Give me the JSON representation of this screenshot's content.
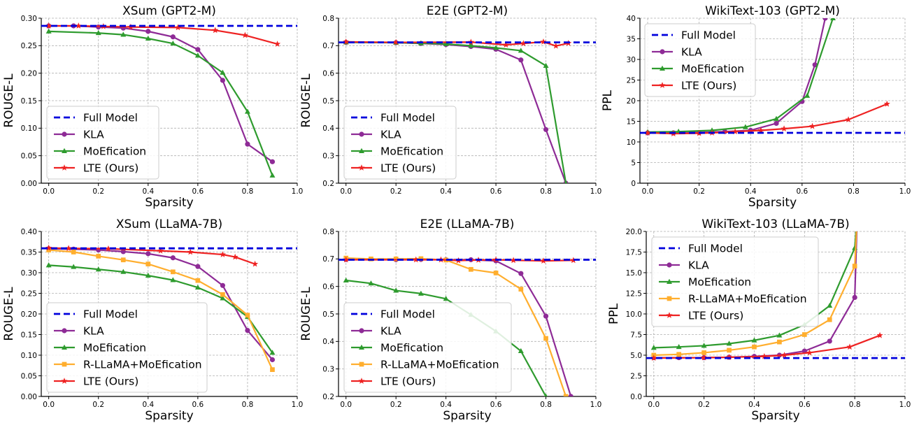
{
  "chart_data": [
    {
      "type": "line",
      "title": "XSum (GPT2-M)",
      "xlabel": "Sparsity",
      "ylabel": "ROUGE-L",
      "xlim": [
        -0.03,
        1.0
      ],
      "ylim": [
        0.0,
        0.3
      ],
      "xticks": [
        "0.0",
        "0.2",
        "0.4",
        "0.6",
        "0.8",
        "1.0"
      ],
      "yticks": [
        "0.00",
        "0.05",
        "0.10",
        "0.15",
        "0.20",
        "0.25",
        "0.30"
      ],
      "grid": true,
      "legend_position": "lower-left",
      "baseline": {
        "name": "Full Model",
        "value": 0.286,
        "color": "#0000dd"
      },
      "series": [
        {
          "name": "KLA",
          "color": "#8e2b96",
          "marker": "circle",
          "x": [
            0.0,
            0.1,
            0.2,
            0.3,
            0.4,
            0.5,
            0.6,
            0.7,
            0.8,
            0.9
          ],
          "y": [
            0.286,
            0.286,
            0.284,
            0.282,
            0.276,
            0.266,
            0.243,
            0.187,
            0.071,
            0.039
          ]
        },
        {
          "name": "MoEfication",
          "color": "#2e9b2e",
          "marker": "triangle",
          "x": [
            0.0,
            0.2,
            0.3,
            0.4,
            0.5,
            0.6,
            0.7,
            0.8,
            0.9
          ],
          "y": [
            0.276,
            0.273,
            0.27,
            0.263,
            0.254,
            0.232,
            0.201,
            0.13,
            0.014
          ]
        },
        {
          "name": "LTE (Ours)",
          "color": "#ee2222",
          "marker": "star",
          "x": [
            0.0,
            0.12,
            0.22,
            0.33,
            0.52,
            0.67,
            0.79,
            0.92
          ],
          "y": [
            0.286,
            0.286,
            0.285,
            0.284,
            0.283,
            0.278,
            0.269,
            0.253
          ]
        }
      ]
    },
    {
      "type": "line",
      "title": "E2E (GPT2-M)",
      "xlabel": "",
      "ylabel": "ROUGE-L",
      "xlim": [
        -0.03,
        1.0
      ],
      "ylim": [
        0.2,
        0.8
      ],
      "xticks": [
        "0.0",
        "0.2",
        "0.4",
        "0.6",
        "0.8",
        "1.0"
      ],
      "yticks": [
        "0.2",
        "0.3",
        "0.4",
        "0.5",
        "0.6",
        "0.7",
        "0.8"
      ],
      "grid": true,
      "legend_position": "lower-left",
      "baseline": {
        "name": "Full Model",
        "value": 0.712,
        "color": "#0000dd"
      },
      "series": [
        {
          "name": "KLA",
          "color": "#8e2b96",
          "marker": "circle",
          "x": [
            0.0,
            0.2,
            0.3,
            0.4,
            0.5,
            0.6,
            0.7,
            0.8,
            0.88
          ],
          "y": [
            0.712,
            0.711,
            0.708,
            0.704,
            0.697,
            0.687,
            0.648,
            0.395,
            0.2
          ]
        },
        {
          "name": "MoEfication",
          "color": "#2e9b2e",
          "marker": "triangle",
          "x": [
            0.0,
            0.2,
            0.3,
            0.4,
            0.5,
            0.6,
            0.7,
            0.8,
            0.88
          ],
          "y": [
            0.712,
            0.711,
            0.709,
            0.706,
            0.7,
            0.692,
            0.682,
            0.627,
            0.2
          ]
        },
        {
          "name": "LTE (Ours)",
          "color": "#ee2222",
          "marker": "star",
          "x": [
            0.0,
            0.2,
            0.5,
            0.64,
            0.71,
            0.79,
            0.84,
            0.89
          ],
          "y": [
            0.714,
            0.712,
            0.713,
            0.703,
            0.708,
            0.714,
            0.699,
            0.709
          ]
        }
      ]
    },
    {
      "type": "line",
      "title": "WikiText-103 (GPT2-M)",
      "xlabel": "Sparsity",
      "ylabel": "PPL",
      "xlim": [
        -0.03,
        1.0
      ],
      "ylim": [
        0,
        40
      ],
      "xticks": [
        "0.0",
        "0.2",
        "0.4",
        "0.6",
        "0.8",
        "1.0"
      ],
      "yticks": [
        "0",
        "5",
        "10",
        "15",
        "20",
        "25",
        "30",
        "35",
        "40"
      ],
      "grid": true,
      "legend_position": "top-left",
      "baseline": {
        "name": "Full Model",
        "value": 12.2,
        "color": "#0000dd"
      },
      "series": [
        {
          "name": "KLA",
          "color": "#8e2b96",
          "marker": "circle",
          "x": [
            0.0,
            0.1,
            0.2,
            0.3,
            0.4,
            0.5,
            0.6,
            0.65,
            0.69,
            0.72
          ],
          "y": [
            12.2,
            12.2,
            12.3,
            12.5,
            12.8,
            14.5,
            19.8,
            28.7,
            40,
            45
          ]
        },
        {
          "name": "MoEfication",
          "color": "#2e9b2e",
          "marker": "triangle",
          "x": [
            0.0,
            0.12,
            0.25,
            0.38,
            0.5,
            0.62,
            0.72,
            0.76
          ],
          "y": [
            12.4,
            12.5,
            12.8,
            13.6,
            15.6,
            21.2,
            40,
            45
          ]
        },
        {
          "name": "LTE (Ours)",
          "color": "#ee2222",
          "marker": "star",
          "x": [
            0.0,
            0.1,
            0.2,
            0.25,
            0.34,
            0.44,
            0.53,
            0.64,
            0.78,
            0.93
          ],
          "y": [
            12.2,
            12.0,
            12.1,
            12.2,
            12.5,
            12.8,
            13.2,
            13.8,
            15.4,
            19.2
          ]
        }
      ]
    },
    {
      "type": "line",
      "title": "XSum (LLaMA-7B)",
      "xlabel": "Sparsity",
      "ylabel": "ROUGE-L",
      "xlim": [
        -0.03,
        1.0
      ],
      "ylim": [
        0.0,
        0.4
      ],
      "xticks": [
        "0.0",
        "0.2",
        "0.4",
        "0.6",
        "0.8",
        "1.0"
      ],
      "yticks": [
        "0.00",
        "0.05",
        "0.10",
        "0.15",
        "0.20",
        "0.25",
        "0.30",
        "0.35",
        "0.40"
      ],
      "grid": true,
      "legend_position": "lower-left",
      "baseline": {
        "name": "Full Model",
        "value": 0.359,
        "color": "#0000dd"
      },
      "series": [
        {
          "name": "KLA",
          "color": "#8e2b96",
          "marker": "circle",
          "x": [
            0.0,
            0.1,
            0.2,
            0.3,
            0.4,
            0.5,
            0.6,
            0.7,
            0.8,
            0.9
          ],
          "y": [
            0.358,
            0.357,
            0.355,
            0.351,
            0.346,
            0.336,
            0.315,
            0.269,
            0.16,
            0.089
          ]
        },
        {
          "name": "MoEfication",
          "color": "#2e9b2e",
          "marker": "triangle",
          "x": [
            0.0,
            0.1,
            0.2,
            0.3,
            0.4,
            0.5,
            0.6,
            0.7,
            0.8,
            0.9
          ],
          "y": [
            0.318,
            0.314,
            0.308,
            0.302,
            0.293,
            0.282,
            0.264,
            0.238,
            0.193,
            0.106
          ]
        },
        {
          "name": "R-LLaMA+MoEfication",
          "color": "#ffae2e",
          "marker": "square",
          "x": [
            0.0,
            0.1,
            0.2,
            0.3,
            0.4,
            0.5,
            0.6,
            0.7,
            0.8,
            0.9
          ],
          "y": [
            0.355,
            0.35,
            0.34,
            0.331,
            0.321,
            0.302,
            0.281,
            0.247,
            0.197,
            0.065
          ]
        },
        {
          "name": "LTE (Ours)",
          "color": "#ee2222",
          "marker": "star",
          "x": [
            0.0,
            0.08,
            0.24,
            0.45,
            0.57,
            0.7,
            0.75,
            0.83
          ],
          "y": [
            0.36,
            0.359,
            0.358,
            0.353,
            0.35,
            0.344,
            0.338,
            0.321
          ]
        }
      ]
    },
    {
      "type": "line",
      "title": "E2E (LLaMA-7B)",
      "xlabel": "Sparsity",
      "ylabel": "ROUGE-L",
      "xlim": [
        -0.03,
        1.0
      ],
      "ylim": [
        0.2,
        0.8
      ],
      "xticks": [
        "0.0",
        "0.2",
        "0.4",
        "0.6",
        "0.8",
        "1.0"
      ],
      "yticks": [
        "0.2",
        "0.3",
        "0.4",
        "0.5",
        "0.6",
        "0.7",
        "0.8"
      ],
      "grid": true,
      "legend_position": "lower-left",
      "baseline": {
        "name": "Full Model",
        "value": 0.697,
        "color": "#0000dd"
      },
      "series": [
        {
          "name": "KLA",
          "color": "#8e2b96",
          "marker": "circle",
          "x": [
            0.0,
            0.2,
            0.3,
            0.4,
            0.5,
            0.6,
            0.7,
            0.8,
            0.9
          ],
          "y": [
            0.698,
            0.697,
            0.698,
            0.697,
            0.697,
            0.693,
            0.647,
            0.492,
            0.2
          ]
        },
        {
          "name": "MoEfication",
          "color": "#2e9b2e",
          "marker": "triangle",
          "x": [
            0.0,
            0.1,
            0.2,
            0.3,
            0.4,
            0.5,
            0.6,
            0.7,
            0.8
          ],
          "y": [
            0.622,
            0.611,
            0.585,
            0.574,
            0.555,
            0.497,
            0.437,
            0.365,
            0.2
          ]
        },
        {
          "name": "R-LLaMA+MoEfication",
          "color": "#ffae2e",
          "marker": "square",
          "x": [
            0.0,
            0.1,
            0.2,
            0.3,
            0.4,
            0.5,
            0.6,
            0.7,
            0.8,
            0.88
          ],
          "y": [
            0.703,
            0.7,
            0.7,
            0.701,
            0.696,
            0.662,
            0.649,
            0.59,
            0.411,
            0.2
          ]
        },
        {
          "name": "LTE (Ours)",
          "color": "#ee2222",
          "marker": "star",
          "x": [
            0.0,
            0.28,
            0.38,
            0.45,
            0.53,
            0.6,
            0.67,
            0.79,
            0.91
          ],
          "y": [
            0.697,
            0.697,
            0.697,
            0.694,
            0.696,
            0.697,
            0.695,
            0.693,
            0.695
          ]
        }
      ]
    },
    {
      "type": "line",
      "title": "WikiText-103 (LLaMA-7B)",
      "xlabel": "Sparsity",
      "ylabel": "PPL",
      "xlim": [
        -0.03,
        1.0
      ],
      "ylim": [
        0.0,
        20.0
      ],
      "xticks": [
        "0.0",
        "0.2",
        "0.4",
        "0.6",
        "0.8",
        "1.0"
      ],
      "yticks": [
        "0.0",
        "2.5",
        "5.0",
        "7.5",
        "10.0",
        "12.5",
        "15.0",
        "17.5",
        "20.0"
      ],
      "grid": true,
      "legend_position": "top-left",
      "baseline": {
        "name": "Full Model",
        "value": 4.65,
        "color": "#0000dd"
      },
      "series": [
        {
          "name": "KLA",
          "color": "#8e2b96",
          "marker": "circle",
          "x": [
            0.0,
            0.1,
            0.2,
            0.3,
            0.4,
            0.5,
            0.6,
            0.7,
            0.8,
            0.81
          ],
          "y": [
            4.7,
            4.7,
            4.7,
            4.75,
            4.85,
            5.0,
            5.5,
            6.7,
            12.0,
            22
          ]
        },
        {
          "name": "MoEfication",
          "color": "#2e9b2e",
          "marker": "triangle",
          "x": [
            0.0,
            0.1,
            0.2,
            0.3,
            0.4,
            0.5,
            0.6,
            0.7,
            0.8,
            0.81
          ],
          "y": [
            5.9,
            6.0,
            6.15,
            6.4,
            6.8,
            7.4,
            8.7,
            11.0,
            18.0,
            22
          ]
        },
        {
          "name": "R-LLaMA+MoEfication",
          "color": "#ffae2e",
          "marker": "square",
          "x": [
            0.0,
            0.1,
            0.2,
            0.3,
            0.4,
            0.5,
            0.6,
            0.7,
            0.8,
            0.81
          ],
          "y": [
            5.0,
            5.1,
            5.3,
            5.6,
            6.0,
            6.6,
            7.5,
            9.3,
            15.8,
            22
          ]
        },
        {
          "name": "LTE (Ours)",
          "color": "#ee2222",
          "marker": "star",
          "x": [
            0.0,
            0.2,
            0.3,
            0.44,
            0.52,
            0.62,
            0.78,
            0.9
          ],
          "y": [
            4.65,
            4.7,
            4.75,
            4.85,
            5.0,
            5.3,
            6.0,
            7.4
          ]
        }
      ]
    }
  ]
}
